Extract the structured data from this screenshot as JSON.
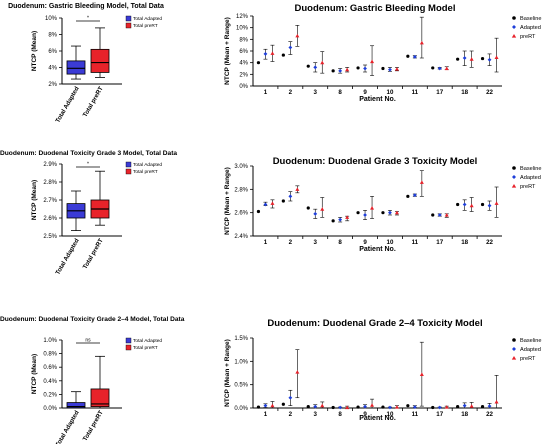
{
  "colors": {
    "baseline": "#000000",
    "adapted": "#1f3fd9",
    "prert": "#e8212a",
    "box_adapted": "#3b3bd6",
    "box_prert": "#e8232a"
  },
  "rows": [
    {
      "box": {
        "title": "Duodenum: Gastric Bleeding Model, Total Data",
        "ylabel": "NTCP (Mean)",
        "yticks": [
          "2%",
          "4%",
          "6%",
          "8%",
          "10%"
        ],
        "ylim": [
          2,
          10
        ],
        "sig": "*",
        "categories": [
          "Total Adapted",
          "Total preRT"
        ],
        "legend": [
          "Total Adapted",
          "Total preRT"
        ],
        "stats": [
          {
            "min": 2.6,
            "q1": 3.2,
            "median": 3.9,
            "q3": 4.8,
            "max": 6.6
          },
          {
            "min": 2.8,
            "q1": 3.4,
            "median": 4.6,
            "q3": 6.2,
            "max": 8.8
          }
        ]
      },
      "scatter": {
        "title": "Duodenum: Gastric Bleeding Model",
        "ylabel": "NTCP (Mean + Range)",
        "xlabel": "Patient No.",
        "yticks": [
          "0%",
          "2%",
          "4%",
          "6%",
          "8%",
          "10%",
          "12%"
        ],
        "ylim": [
          0,
          12
        ],
        "patients": [
          "1",
          "2",
          "3",
          "8",
          "9",
          "10",
          "11",
          "17",
          "18",
          "22"
        ],
        "legend": [
          "Baseline",
          "Adapted",
          "preRT"
        ],
        "baseline": [
          4.0,
          5.3,
          3.4,
          2.6,
          3.1,
          3.0,
          5.1,
          3.1,
          4.6,
          4.7
        ],
        "adapted": [
          [
            5.5,
            4.6,
            6.3
          ],
          [
            6.6,
            5.4,
            7.6
          ],
          [
            3.2,
            2.4,
            4.0
          ],
          [
            2.6,
            2.2,
            3.0
          ],
          [
            3.0,
            2.4,
            3.6
          ],
          [
            2.8,
            2.5,
            3.2
          ],
          [
            5.0,
            4.8,
            5.2
          ],
          [
            3.0,
            2.9,
            3.2
          ],
          [
            4.8,
            3.5,
            6.0
          ],
          [
            4.5,
            3.5,
            5.5
          ]
        ],
        "prert": [
          [
            5.6,
            4.2,
            7.0
          ],
          [
            8.6,
            6.8,
            10.4
          ],
          [
            4.0,
            2.2,
            5.9
          ],
          [
            2.8,
            2.4,
            3.2
          ],
          [
            4.2,
            1.8,
            6.9
          ],
          [
            2.9,
            2.6,
            3.2
          ],
          [
            7.4,
            4.8,
            11.8
          ],
          [
            3.0,
            2.8,
            3.3
          ],
          [
            4.6,
            3.2,
            6.0
          ],
          [
            4.9,
            2.4,
            8.2
          ]
        ]
      }
    },
    {
      "box": {
        "title": "Duodenum: Duodenal Toxicity Grade 3 Model, Total Data",
        "ylabel": "NTCP (Mean)",
        "yticks": [
          "2.5%",
          "2.6%",
          "2.7%",
          "2.8%",
          "2.9%"
        ],
        "ylim": [
          2.5,
          2.9
        ],
        "sig": "*",
        "categories": [
          "Total Adapted",
          "Total preRT"
        ],
        "legend": [
          "Total Adapted",
          "Total preRT"
        ],
        "stats": [
          {
            "min": 2.53,
            "q1": 2.6,
            "median": 2.64,
            "q3": 2.68,
            "max": 2.75
          },
          {
            "min": 2.56,
            "q1": 2.6,
            "median": 2.65,
            "q3": 2.7,
            "max": 2.86
          }
        ]
      },
      "scatter": {
        "title": "Duodenum: Duodenal Grade 3 Toxicity Model",
        "ylabel": "NTCP (Mean + Range)",
        "xlabel": "Patient No.",
        "yticks": [
          "2.4%",
          "2.6%",
          "2.8%",
          "3.0%"
        ],
        "ylim": [
          2.4,
          3.0
        ],
        "patients": [
          "1",
          "2",
          "3",
          "8",
          "9",
          "10",
          "11",
          "17",
          "18",
          "22"
        ],
        "legend": [
          "Baseline",
          "Adapted",
          "preRT"
        ],
        "baseline": [
          2.61,
          2.7,
          2.64,
          2.53,
          2.6,
          2.6,
          2.74,
          2.58,
          2.67,
          2.67
        ],
        "adapted": [
          [
            2.67,
            2.66,
            2.69
          ],
          [
            2.74,
            2.7,
            2.78
          ],
          [
            2.59,
            2.55,
            2.63
          ],
          [
            2.54,
            2.52,
            2.56
          ],
          [
            2.58,
            2.54,
            2.62
          ],
          [
            2.6,
            2.58,
            2.62
          ],
          [
            2.75,
            2.74,
            2.76
          ],
          [
            2.58,
            2.57,
            2.59
          ],
          [
            2.67,
            2.62,
            2.71
          ],
          [
            2.66,
            2.62,
            2.7
          ]
        ],
        "prert": [
          [
            2.68,
            2.64,
            2.71
          ],
          [
            2.8,
            2.77,
            2.83
          ],
          [
            2.63,
            2.56,
            2.73
          ],
          [
            2.56,
            2.53,
            2.57
          ],
          [
            2.64,
            2.55,
            2.74
          ],
          [
            2.6,
            2.58,
            2.61
          ],
          [
            2.86,
            2.74,
            2.96
          ],
          [
            2.58,
            2.56,
            2.59
          ],
          [
            2.66,
            2.61,
            2.73
          ],
          [
            2.68,
            2.56,
            2.82
          ]
        ]
      }
    },
    {
      "box": {
        "title": "Duodenum: Duodenal Toxicity Grade 2–4  Model, Total Data",
        "ylabel": "NTCP (Mean)",
        "yticks": [
          "0.0%",
          "0.2%",
          "0.4%",
          "0.6%",
          "0.8%",
          "1.0%"
        ],
        "ylim": [
          0,
          1.0
        ],
        "sig": "ns",
        "categories": [
          "Total Adapted",
          "Total preRT"
        ],
        "legend": [
          "Total Adapted",
          "Total preRT"
        ],
        "stats": [
          {
            "min": 0.0,
            "q1": 0.0,
            "median": 0.02,
            "q3": 0.08,
            "max": 0.24
          },
          {
            "min": 0.0,
            "q1": 0.02,
            "median": 0.06,
            "q3": 0.28,
            "max": 0.76
          }
        ]
      },
      "scatter": {
        "title": "Duodenum: Duodenal Grade 2–4 Toxicity Model",
        "ylabel": "NTCP (Mean + Range)",
        "xlabel": "Patient No.",
        "yticks": [
          "0.0%",
          "0.5%",
          "1.0%",
          "1.5%"
        ],
        "ylim": [
          0,
          1.5
        ],
        "patients": [
          "1",
          "2",
          "3",
          "8",
          "9",
          "10",
          "11",
          "17",
          "18",
          "22"
        ],
        "legend": [
          "Baseline",
          "Adapted",
          "preRT"
        ],
        "baseline": [
          0.02,
          0.08,
          0.03,
          0.01,
          0.02,
          0.02,
          0.05,
          0.01,
          0.03,
          0.03
        ],
        "adapted": [
          [
            0.05,
            0.01,
            0.09
          ],
          [
            0.22,
            0.05,
            0.38
          ],
          [
            0.03,
            0.0,
            0.07
          ],
          [
            0.01,
            0.0,
            0.02
          ],
          [
            0.03,
            0.0,
            0.07
          ],
          [
            0.01,
            0.0,
            0.02
          ],
          [
            0.02,
            0.0,
            0.05
          ],
          [
            0.01,
            0.0,
            0.02
          ],
          [
            0.05,
            0.0,
            0.11
          ],
          [
            0.04,
            0.0,
            0.1
          ]
        ],
        "prert": [
          [
            0.05,
            0.0,
            0.14
          ],
          [
            0.77,
            0.22,
            1.25
          ],
          [
            0.05,
            0.0,
            0.13
          ],
          [
            0.01,
            0.0,
            0.04
          ],
          [
            0.06,
            0.0,
            0.19
          ],
          [
            0.02,
            0.0,
            0.05
          ],
          [
            0.72,
            0.04,
            1.41
          ],
          [
            0.02,
            0.0,
            0.04
          ],
          [
            0.04,
            0.0,
            0.12
          ],
          [
            0.13,
            0.0,
            0.7
          ]
        ]
      }
    }
  ],
  "chart_data": [
    {
      "type": "box",
      "title": "Duodenum: Gastric Bleeding Model, Total Data",
      "ylabel": "NTCP (Mean)",
      "ylim": [
        2,
        10
      ],
      "categories": [
        "Total Adapted",
        "Total preRT"
      ]
    },
    {
      "type": "scatter",
      "title": "Duodenum: Gastric Bleeding Model",
      "xlabel": "Patient No.",
      "ylabel": "NTCP (Mean + Range)",
      "ylim": [
        0,
        12
      ]
    },
    {
      "type": "box",
      "title": "Duodenum: Duodenal Toxicity Grade 3 Model, Total Data",
      "ylabel": "NTCP (Mean)",
      "ylim": [
        2.5,
        2.9
      ],
      "categories": [
        "Total Adapted",
        "Total preRT"
      ]
    },
    {
      "type": "scatter",
      "title": "Duodenum: Duodenal Grade 3 Toxicity Model",
      "xlabel": "Patient No.",
      "ylabel": "NTCP (Mean + Range)",
      "ylim": [
        2.4,
        3.0
      ]
    },
    {
      "type": "box",
      "title": "Duodenum: Duodenal Toxicity Grade 2–4  Model, Total Data",
      "ylabel": "NTCP (Mean)",
      "ylim": [
        0,
        1.0
      ],
      "categories": [
        "Total Adapted",
        "Total preRT"
      ]
    },
    {
      "type": "scatter",
      "title": "Duodenum: Duodenal Grade 2–4 Toxicity Model",
      "xlabel": "Patient No.",
      "ylabel": "NTCP (Mean + Range)",
      "ylim": [
        0,
        1.5
      ]
    }
  ]
}
